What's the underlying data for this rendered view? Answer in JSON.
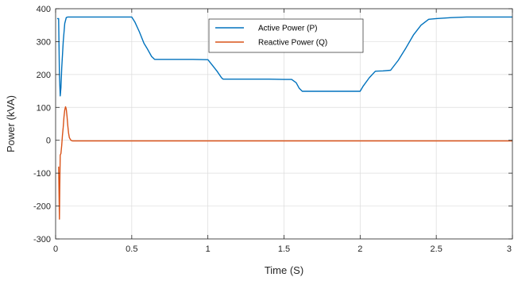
{
  "chart_data": {
    "type": "line",
    "xlabel": "Time (S)",
    "ylabel": "Power (kVA)",
    "xlim": [
      0,
      3
    ],
    "ylim": [
      -300,
      400
    ],
    "xticks": [
      0,
      0.5,
      1,
      1.5,
      2,
      2.5,
      3
    ],
    "xtick_labels": [
      "0",
      "0.5",
      "1",
      "1.5",
      "2",
      "2.5",
      "3"
    ],
    "yticks": [
      -300,
      -200,
      -100,
      0,
      100,
      200,
      300,
      400
    ],
    "ytick_labels": [
      "-300",
      "-200",
      "-100",
      "0",
      "100",
      "200",
      "300",
      "400"
    ],
    "grid": true,
    "legend_position": "top-center",
    "series": [
      {
        "name": "Active Power (P)",
        "color": "#0072BD",
        "x": [
          0.01,
          0.02,
          0.025,
          0.03,
          0.035,
          0.04,
          0.05,
          0.06,
          0.07,
          0.08,
          0.1,
          0.15,
          0.2,
          0.3,
          0.4,
          0.5,
          0.52,
          0.55,
          0.58,
          0.6,
          0.63,
          0.65,
          0.7,
          0.8,
          0.9,
          1.0,
          1.03,
          1.06,
          1.09,
          1.1,
          1.2,
          1.3,
          1.4,
          1.5,
          1.55,
          1.58,
          1.6,
          1.62,
          1.7,
          1.8,
          1.9,
          2.0,
          2.02,
          2.06,
          2.1,
          2.15,
          2.2,
          2.22,
          2.25,
          2.3,
          2.35,
          2.4,
          2.45,
          2.5,
          2.6,
          2.7,
          2.8,
          2.9,
          3.0
        ],
        "y": [
          370,
          370,
          200,
          135,
          160,
          220,
          300,
          355,
          373,
          375,
          375,
          375,
          375,
          375,
          375,
          375,
          360,
          330,
          295,
          280,
          255,
          246,
          246,
          246,
          246,
          245,
          228,
          210,
          190,
          186,
          186,
          186,
          186,
          185,
          185,
          175,
          158,
          149,
          149,
          149,
          149,
          149,
          165,
          190,
          210,
          211,
          213,
          225,
          243,
          280,
          320,
          350,
          368,
          370,
          373,
          375,
          375,
          375,
          375
        ]
      },
      {
        "name": "Reactive Power (Q)",
        "color": "#D95319",
        "x": [
          0.02,
          0.025,
          0.027,
          0.03,
          0.035,
          0.04,
          0.045,
          0.05,
          0.055,
          0.06,
          0.065,
          0.07,
          0.075,
          0.08,
          0.085,
          0.09,
          0.1,
          0.11,
          0.12,
          0.15,
          0.2,
          0.5,
          1.0,
          1.5,
          2.0,
          2.5,
          3.0
        ],
        "y": [
          -80,
          -240,
          -150,
          -45,
          -40,
          -15,
          15,
          40,
          70,
          92,
          102,
          95,
          72,
          45,
          22,
          8,
          0,
          -2,
          -2,
          -2,
          -2,
          -2,
          -2,
          -2,
          -2,
          -2,
          -2
        ]
      }
    ]
  }
}
